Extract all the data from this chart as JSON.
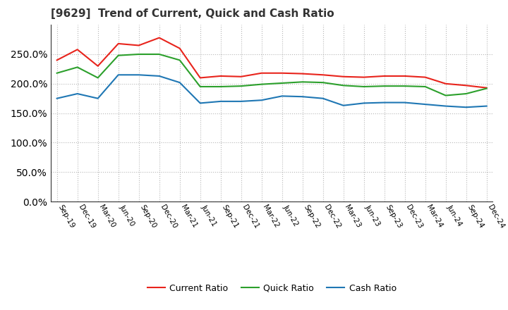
{
  "title": "[9629]  Trend of Current, Quick and Cash Ratio",
  "labels": [
    "Sep-19",
    "Dec-19",
    "Mar-20",
    "Jun-20",
    "Sep-20",
    "Dec-20",
    "Mar-21",
    "Jun-21",
    "Sep-21",
    "Dec-21",
    "Mar-22",
    "Jun-22",
    "Sep-22",
    "Dec-22",
    "Mar-23",
    "Jun-23",
    "Sep-23",
    "Dec-23",
    "Mar-24",
    "Jun-24",
    "Sep-24",
    "Dec-24"
  ],
  "current_ratio": [
    240,
    258,
    230,
    268,
    265,
    278,
    260,
    210,
    213,
    212,
    218,
    218,
    217,
    215,
    212,
    211,
    213,
    213,
    211,
    200,
    197,
    193
  ],
  "quick_ratio": [
    218,
    228,
    210,
    248,
    250,
    250,
    240,
    195,
    195,
    196,
    199,
    201,
    203,
    202,
    197,
    195,
    196,
    196,
    195,
    180,
    183,
    192
  ],
  "cash_ratio": [
    175,
    183,
    175,
    215,
    215,
    213,
    202,
    167,
    170,
    170,
    172,
    179,
    178,
    175,
    163,
    167,
    168,
    168,
    165,
    162,
    160,
    162
  ],
  "ylim": [
    0,
    300
  ],
  "yticks": [
    0,
    50,
    100,
    150,
    200,
    250
  ],
  "current_color": "#e8241c",
  "quick_color": "#2ca02c",
  "cash_color": "#1f77b4",
  "background_color": "#ffffff",
  "grid_color": "#b0b0b0",
  "legend_labels": [
    "Current Ratio",
    "Quick Ratio",
    "Cash Ratio"
  ],
  "title_color": "#333333"
}
